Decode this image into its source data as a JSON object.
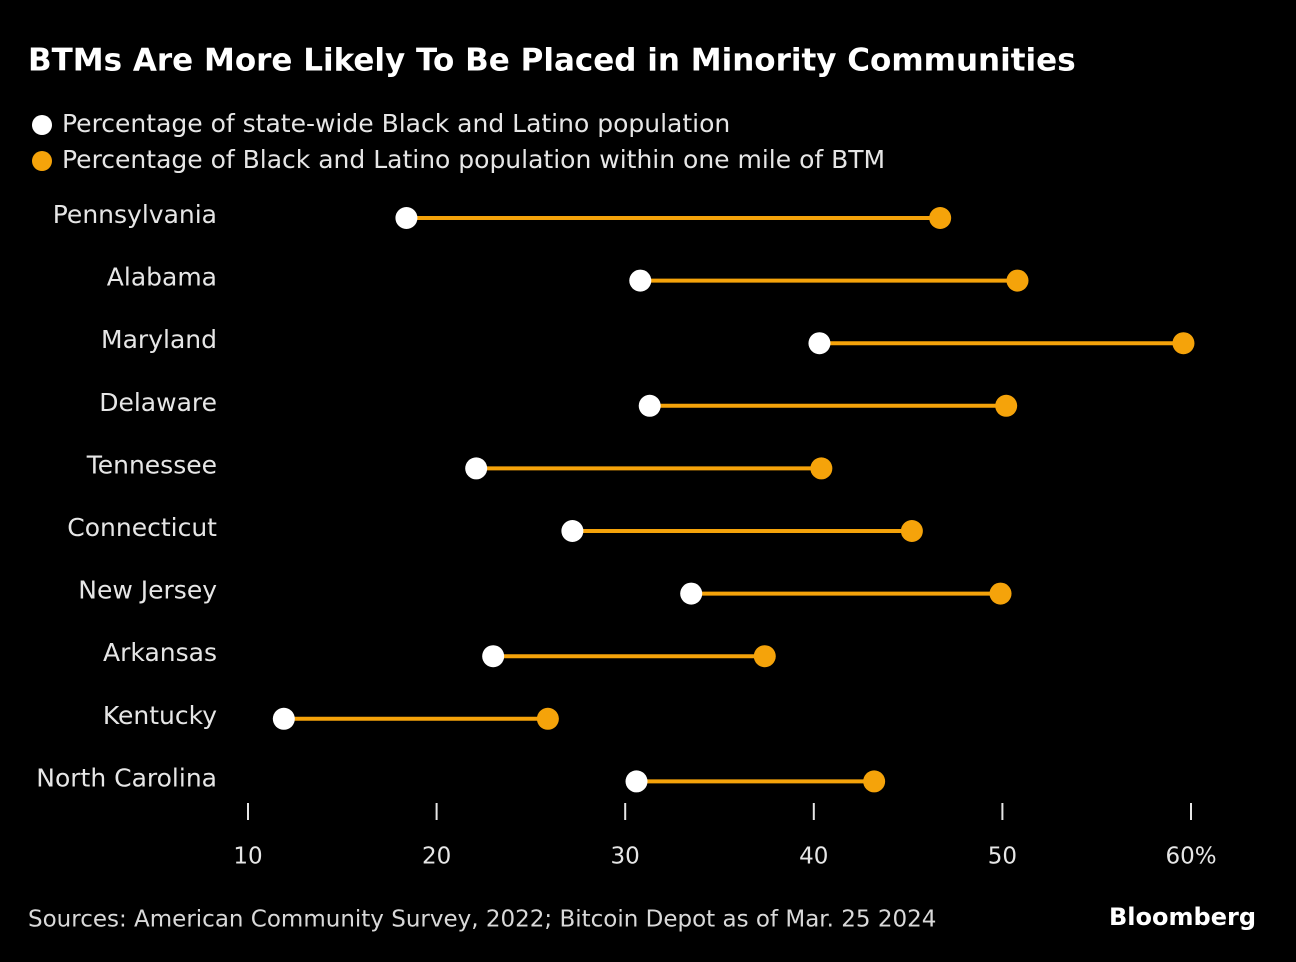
{
  "chart_data": {
    "type": "dumbbell",
    "title": "BTMs Are More Likely To Be Placed in Minority Communities",
    "categories": [
      "Pennsylvania",
      "Alabama",
      "Maryland",
      "Delaware",
      "Tennessee",
      "Connecticut",
      "New Jersey",
      "Arkansas",
      "Kentucky",
      "North Carolina"
    ],
    "series": [
      {
        "name": "Percentage of state-wide Black and Latino population",
        "color": "#ffffff",
        "values": [
          18.4,
          30.8,
          40.3,
          31.3,
          22.1,
          27.2,
          33.5,
          23.0,
          11.9,
          30.6
        ]
      },
      {
        "name": "Percentage of Black and Latino population within one mile of BTM",
        "color": "#f5a30a",
        "values": [
          46.7,
          50.8,
          59.6,
          50.2,
          40.4,
          45.2,
          49.9,
          37.4,
          25.9,
          43.2
        ]
      }
    ],
    "connector_color": "#f5a30a",
    "xlim": [
      10,
      60
    ],
    "xticks": [
      10,
      20,
      30,
      40,
      50,
      {
        "value": 60,
        "label": "60%"
      }
    ],
    "source": "Sources: American Community Survey, 2022; Bitcoin Depot as of Mar. 25 2024",
    "brand": "Bloomberg"
  }
}
